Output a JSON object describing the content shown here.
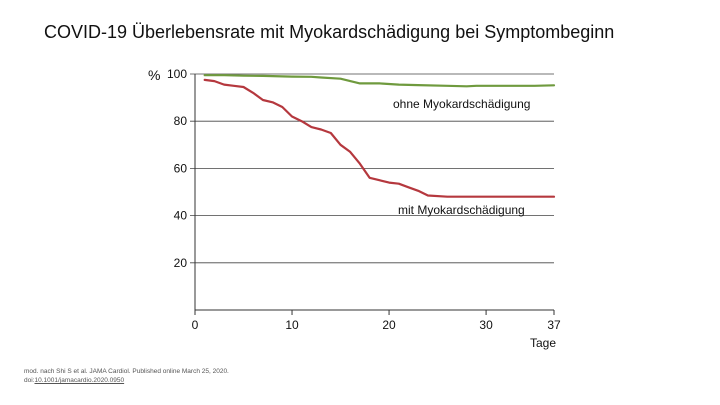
{
  "slide": {
    "title": "COVID-19 Überlebensrate mit Myokardschädigung bei Symptombeginn",
    "source_line1": "mod. nach Shi  S et al. JAMA Cardiol. Published online March 25, 2020.",
    "source_doi_prefix": "doi:",
    "source_doi": "10.1001/jamacardio.2020.0950"
  },
  "chart_data": {
    "type": "line",
    "title": "",
    "xlabel": "Tage",
    "ylabel": "%",
    "xlim": [
      0,
      37
    ],
    "ylim": [
      0,
      100
    ],
    "x_ticks": [
      0,
      10,
      20,
      30,
      37
    ],
    "y_ticks": [
      20,
      40,
      60,
      80,
      100
    ],
    "grid": "horizontal",
    "series": [
      {
        "name": "ohne Myokardschädigung",
        "color": "#6f9a3e",
        "x": [
          1,
          3,
          5,
          7,
          9,
          10,
          12,
          13,
          15,
          16,
          17,
          19,
          21,
          23,
          26,
          28,
          29,
          31,
          33,
          35,
          37
        ],
        "y": [
          99.5,
          99.5,
          99.3,
          99.2,
          99,
          98.9,
          98.8,
          98.5,
          98,
          97,
          96,
          96,
          95.5,
          95.3,
          95,
          94.8,
          95,
          95,
          95,
          95,
          95.2
        ]
      },
      {
        "name": "mit Myokardschädigung",
        "color": "#b5383e",
        "x": [
          1,
          2,
          3,
          4,
          5,
          6,
          7,
          8,
          9,
          10,
          11,
          12,
          13,
          14,
          15,
          16,
          17,
          18,
          19,
          20,
          21,
          22,
          23,
          24,
          26,
          28,
          30,
          32,
          34,
          35,
          37
        ],
        "y": [
          97.5,
          97,
          95.5,
          95,
          94.5,
          92,
          89,
          88,
          86,
          82,
          80,
          77.5,
          76.5,
          75,
          70,
          67,
          62,
          56,
          55,
          54,
          53.5,
          52,
          50.5,
          48.5,
          48,
          48,
          48,
          48,
          48,
          48,
          48
        ]
      }
    ]
  }
}
